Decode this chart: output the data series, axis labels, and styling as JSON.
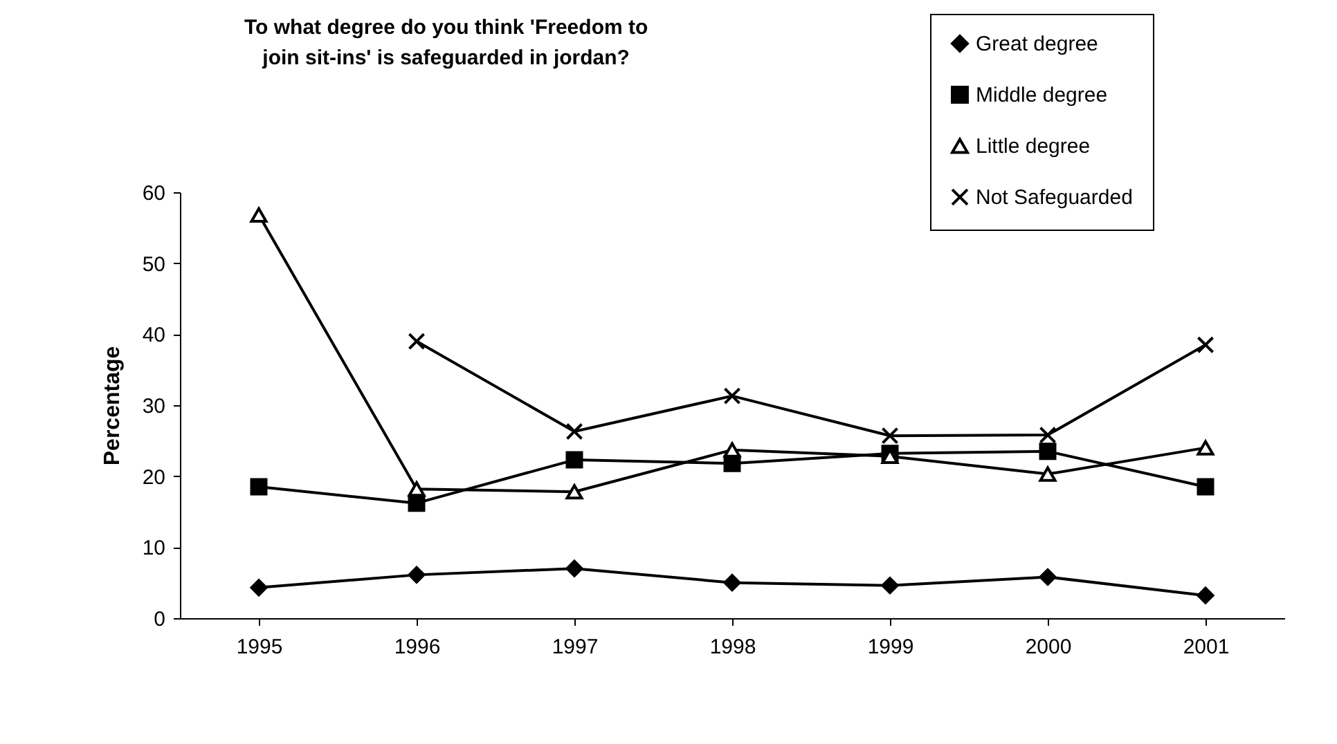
{
  "chart_data": {
    "type": "line",
    "title": "To what degree do you think 'Freedom to join sit-ins' is safeguarded in jordan?",
    "ylabel": "Percentage",
    "categories": [
      "1995",
      "1996",
      "1997",
      "1998",
      "1999",
      "2000",
      "2001"
    ],
    "ylim": [
      0,
      60
    ],
    "yticks": [
      0,
      10,
      20,
      30,
      40,
      50,
      60
    ],
    "grid": false,
    "legend": "top right",
    "line_style": "solid",
    "series": [
      {
        "name": "Great degree",
        "color": "#000000",
        "marker": "diamond",
        "values": [
          4.3,
          6.1,
          7.0,
          5.0,
          4.6,
          5.8,
          3.2
        ]
      },
      {
        "name": "Middle degree",
        "color": "#000000",
        "marker": "square",
        "values": [
          18.5,
          16.2,
          22.3,
          21.8,
          23.2,
          23.5,
          18.5
        ]
      },
      {
        "name": "Little degree",
        "color": "#000000",
        "marker": "triangle",
        "values": [
          56.8,
          18.2,
          17.8,
          23.7,
          22.8,
          20.3,
          24.0
        ]
      },
      {
        "name": "Not Safeguarded",
        "color": "#000000",
        "marker": "cross",
        "values": [
          null,
          39.0,
          26.3,
          31.3,
          25.7,
          25.8,
          38.5
        ]
      }
    ]
  }
}
